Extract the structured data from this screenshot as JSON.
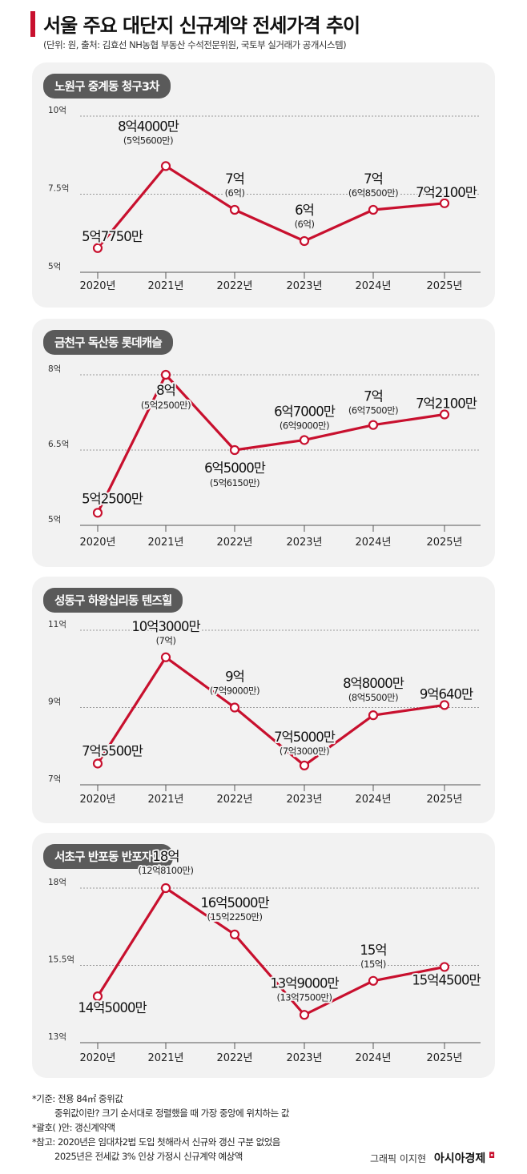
{
  "title": "서울 주요 대단지 신규계약 전세가격 추이",
  "subtitle": "(단위: 원, 출처: 김효선 NH농협 부동산 수석전문위원, 국토부 실거래가 공개시스템)",
  "colors": {
    "accent": "#c8102e",
    "panel": "#f2f2f2",
    "label_bg": "#5a5a5a"
  },
  "chart_data": [
    {
      "type": "line",
      "title": "노원구 중계동 청구3차",
      "categories": [
        "2020년",
        "2021년",
        "2022년",
        "2023년",
        "2024년",
        "2025년"
      ],
      "values": [
        5.775,
        8.4,
        7.0,
        6.0,
        7.0,
        7.21
      ],
      "ylim": [
        5,
        10
      ],
      "yticks": [
        {
          "v": 10,
          "label": "10억"
        },
        {
          "v": 7.5,
          "label": "7.5억"
        },
        {
          "v": 5,
          "label": "5억"
        }
      ],
      "labels": [
        "5억7750만",
        "8억4000만",
        "7억",
        "6억",
        "7억",
        "7억2100만"
      ],
      "sublabels": [
        "",
        "(5억5600만)",
        "(6억)",
        "(6억)",
        "(6억8500만)",
        ""
      ]
    },
    {
      "type": "line",
      "title": "금천구 독산동 롯데캐슬",
      "categories": [
        "2020년",
        "2021년",
        "2022년",
        "2023년",
        "2024년",
        "2025년"
      ],
      "values": [
        5.25,
        8.0,
        6.5,
        6.7,
        7.0,
        7.21
      ],
      "ylim": [
        5,
        8
      ],
      "yticks": [
        {
          "v": 8,
          "label": "8억"
        },
        {
          "v": 6.5,
          "label": "6.5억"
        },
        {
          "v": 5,
          "label": "5억"
        }
      ],
      "labels": [
        "5억2500만",
        "8억",
        "6억5000만",
        "6억7000만",
        "7억",
        "7억2100만"
      ],
      "sublabels": [
        "",
        "(5억2500만)",
        "(5억6150만)",
        "(6억9000만)",
        "(6억7500만)",
        ""
      ]
    },
    {
      "type": "line",
      "title": "성동구 하왕십리동 텐즈힐",
      "categories": [
        "2020년",
        "2021년",
        "2022년",
        "2023년",
        "2024년",
        "2025년"
      ],
      "values": [
        7.55,
        10.3,
        9.0,
        7.5,
        8.8,
        9.064
      ],
      "ylim": [
        7,
        11
      ],
      "yticks": [
        {
          "v": 11,
          "label": "11억"
        },
        {
          "v": 9,
          "label": "9억"
        },
        {
          "v": 7,
          "label": "7억"
        }
      ],
      "labels": [
        "7억5500만",
        "10억3000만",
        "9억",
        "7억5000만",
        "8억8000만",
        "9억640만"
      ],
      "sublabels": [
        "",
        "(7억)",
        "(7억9000만)",
        "(7억3000만)",
        "(8억5500만)",
        ""
      ]
    },
    {
      "type": "line",
      "title": "서초구 반포동 반포자이",
      "categories": [
        "2020년",
        "2021년",
        "2022년",
        "2023년",
        "2024년",
        "2025년"
      ],
      "values": [
        14.5,
        18.0,
        16.5,
        13.9,
        15.0,
        15.45
      ],
      "ylim": [
        13,
        18
      ],
      "yticks": [
        {
          "v": 18,
          "label": "18억"
        },
        {
          "v": 15.5,
          "label": "15.5억"
        },
        {
          "v": 13,
          "label": "13억"
        }
      ],
      "labels": [
        "14억5000만",
        "18억",
        "16억5000만",
        "13억9000만",
        "15억",
        "15억4500만"
      ],
      "sublabels": [
        "",
        "(12억8100만)",
        "(15억2250만)",
        "(13억7500만)",
        "(15억)",
        ""
      ]
    }
  ],
  "notes": {
    "n1": "*기준: 전용 84㎡ 중위값",
    "n1b": "중위값이란? 크기 순서대로 정렬했을 때 가장 중앙에 위치하는 값",
    "n2": "*괄호( )안: 갱신계약액",
    "n3": "*참고: 2020년은 임대차2법 도입 첫해라서 신규와 갱신 구분 없었음",
    "n3b": "2025년은 전세값 3% 인상 가정시 신규계약 예상액"
  },
  "credit": {
    "text": "그래픽 이지현",
    "brand": "아시아경제",
    "mark": "◘"
  }
}
